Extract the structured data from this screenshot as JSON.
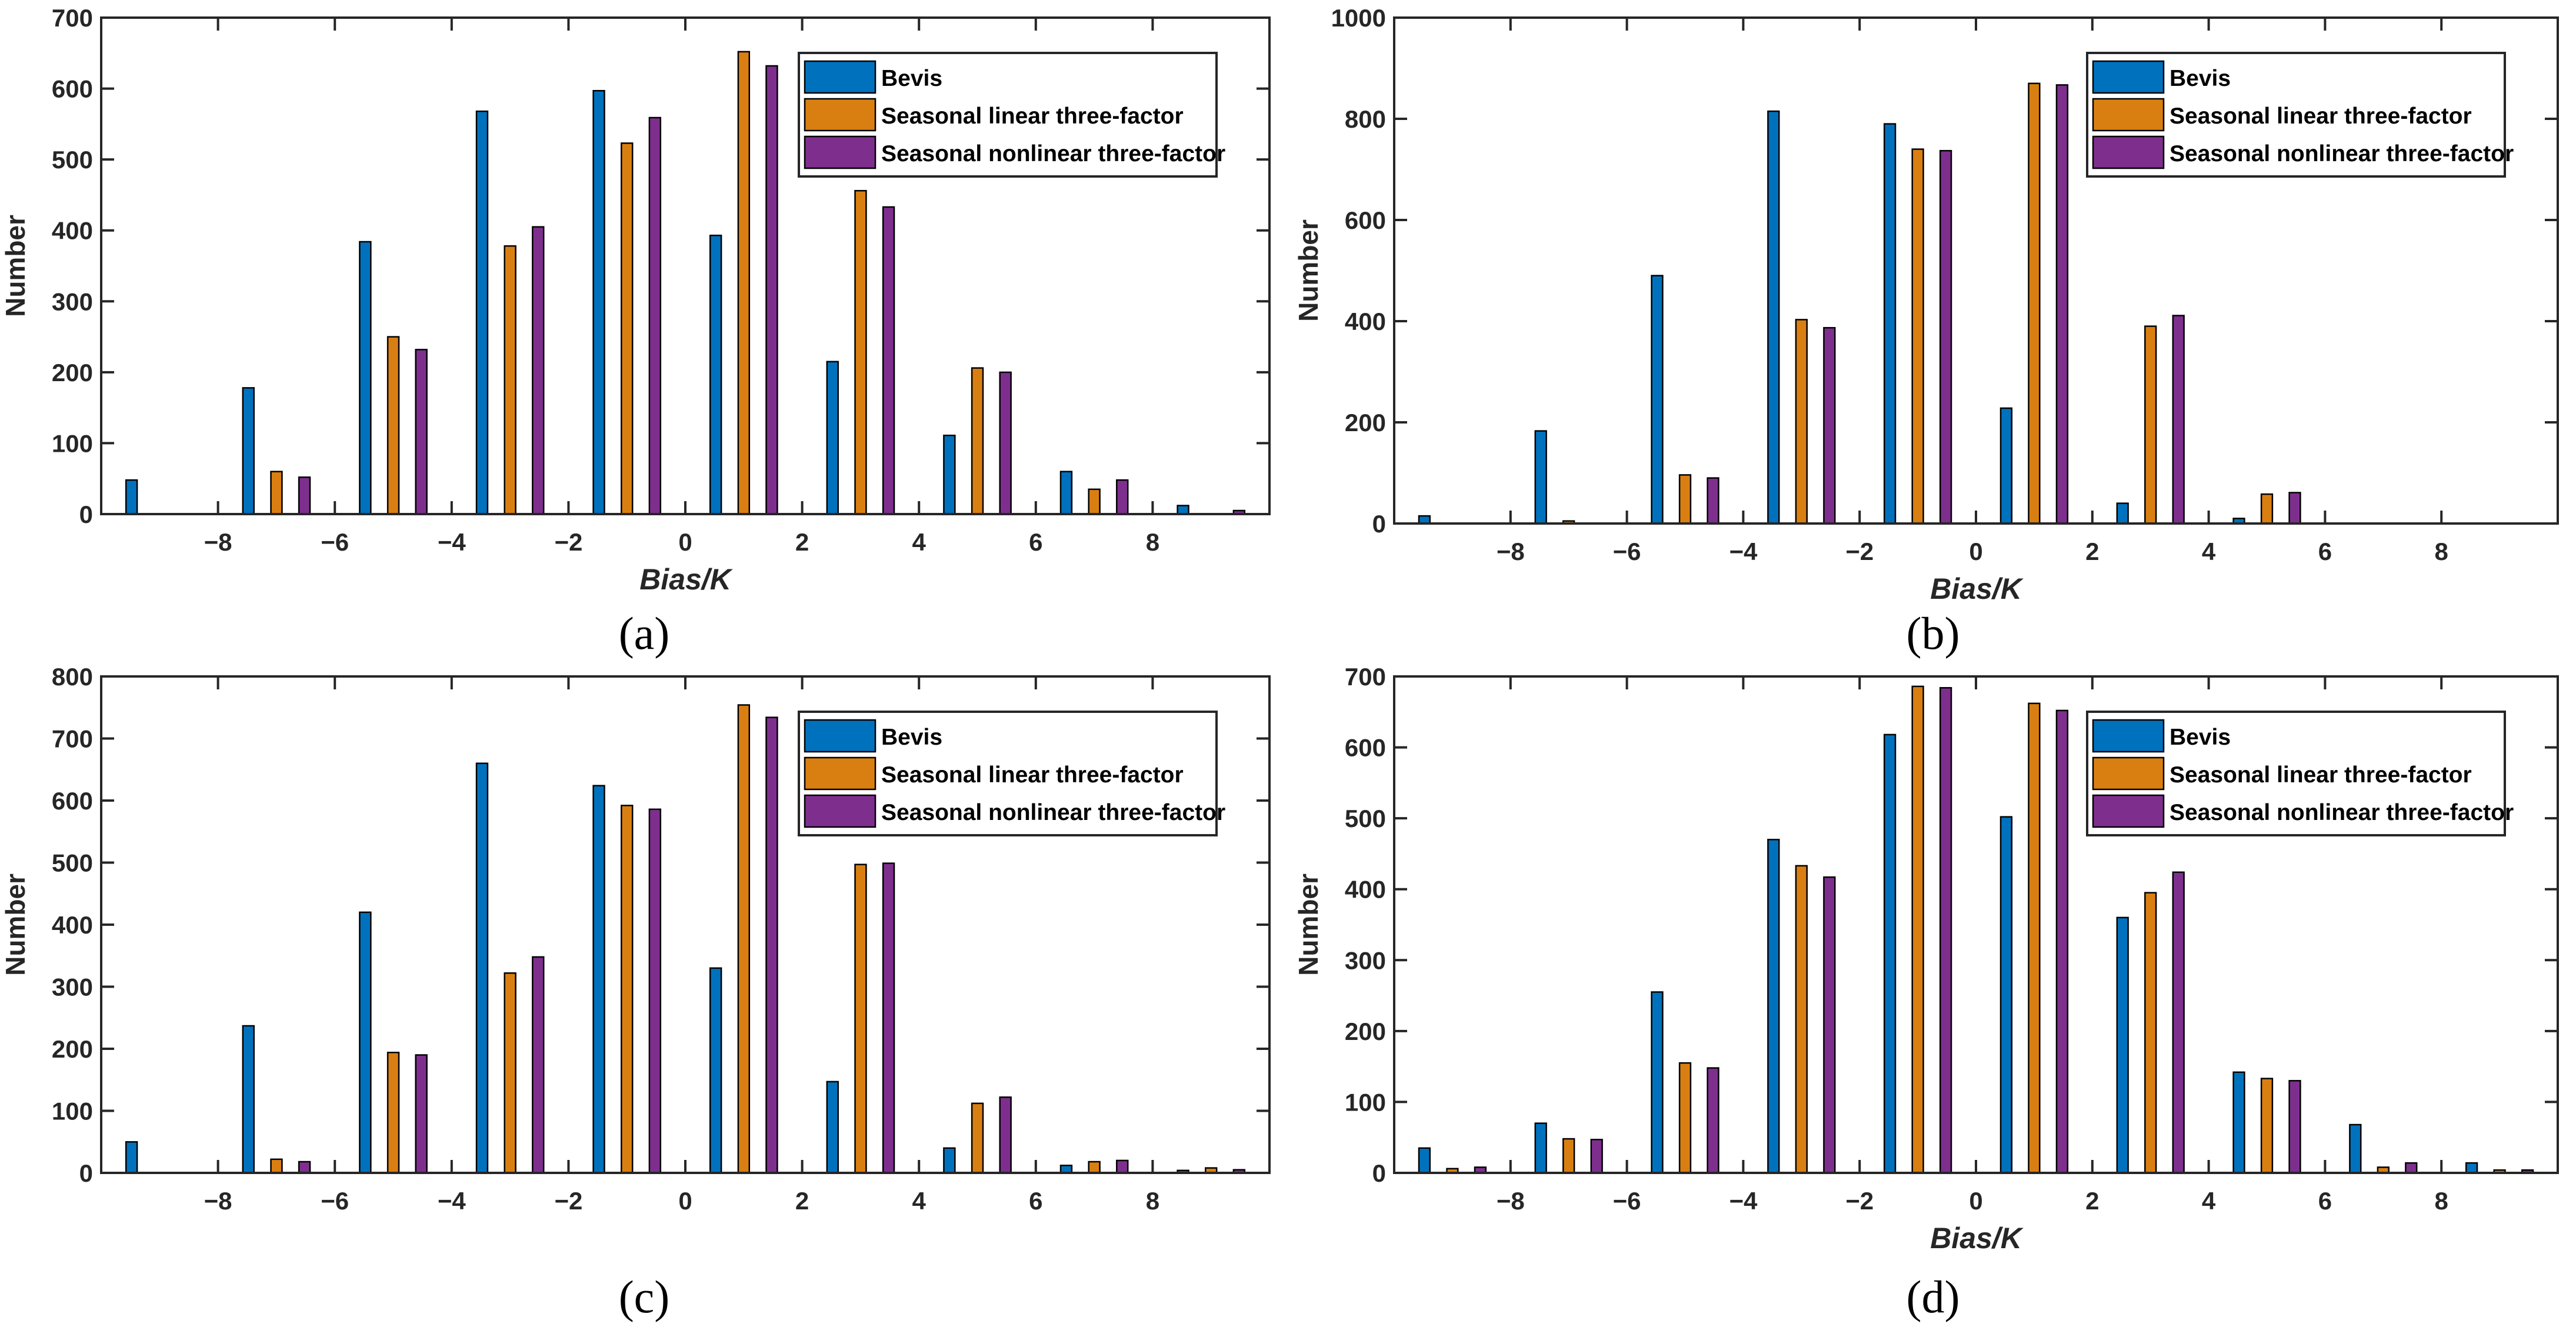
{
  "colors": {
    "bevis": "#0072BD",
    "linear": "#D97F12",
    "nonlinear": "#7E2F8E",
    "axis": "#262626"
  },
  "chart_data": [
    {
      "panel": "(a)",
      "panel_letter": "a",
      "type": "bar",
      "xlabel": "Bias/K",
      "ylabel": "Number",
      "xlim": [
        -10,
        10
      ],
      "ylim": [
        0,
        700
      ],
      "yticks": [
        0,
        100,
        200,
        300,
        400,
        500,
        600,
        700
      ],
      "xticks": [
        -8,
        -6,
        -4,
        -2,
        0,
        2,
        4,
        6,
        8
      ],
      "categories": [
        -9,
        -7,
        -5,
        -3,
        -1,
        1,
        3,
        5,
        7,
        9
      ],
      "legend": {
        "position": "top-right"
      },
      "series": [
        {
          "name": "Bevis",
          "values": [
            48,
            178,
            384,
            568,
            597,
            393,
            215,
            111,
            60,
            12
          ]
        },
        {
          "name": "Seasonal linear three-factor",
          "values": [
            0,
            60,
            250,
            378,
            523,
            652,
            456,
            206,
            35,
            0
          ]
        },
        {
          "name": "Seasonal nonlinear three-factor",
          "values": [
            0,
            52,
            232,
            405,
            559,
            632,
            433,
            200,
            48,
            5
          ]
        }
      ]
    },
    {
      "panel": "(b)",
      "panel_letter": "b",
      "type": "bar",
      "xlabel": "Bias/K",
      "ylabel": "Number",
      "xlim": [
        -10,
        10
      ],
      "ylim": [
        0,
        1000
      ],
      "yticks": [
        0,
        200,
        400,
        600,
        800,
        1000
      ],
      "xticks": [
        -8,
        -6,
        -4,
        -2,
        0,
        2,
        4,
        6,
        8
      ],
      "categories": [
        -9,
        -7,
        -5,
        -3,
        -1,
        1,
        3,
        5,
        7,
        9
      ],
      "legend": {
        "position": "top-right"
      },
      "series": [
        {
          "name": "Bevis",
          "values": [
            15,
            183,
            490,
            815,
            790,
            228,
            40,
            10,
            0,
            0
          ]
        },
        {
          "name": "Seasonal linear three-factor",
          "values": [
            0,
            5,
            96,
            403,
            740,
            870,
            390,
            58,
            0,
            0
          ]
        },
        {
          "name": "Seasonal nonlinear three-factor",
          "values": [
            0,
            0,
            90,
            387,
            737,
            867,
            411,
            61,
            0,
            0
          ]
        }
      ]
    },
    {
      "panel": "(c)",
      "panel_letter": "c",
      "type": "bar",
      "xlabel": "",
      "ylabel": "Number",
      "xlim": [
        -10,
        10
      ],
      "ylim": [
        0,
        800
      ],
      "yticks": [
        0,
        100,
        200,
        300,
        400,
        500,
        600,
        700,
        800
      ],
      "xticks": [
        -8,
        -6,
        -4,
        -2,
        0,
        2,
        4,
        6,
        8
      ],
      "categories": [
        -9,
        -7,
        -5,
        -3,
        -1,
        1,
        3,
        5,
        7,
        9
      ],
      "legend": {
        "position": "top-right"
      },
      "series": [
        {
          "name": "Bevis",
          "values": [
            50,
            237,
            420,
            660,
            624,
            330,
            147,
            40,
            12,
            4
          ]
        },
        {
          "name": "Seasonal linear three-factor",
          "values": [
            0,
            22,
            194,
            322,
            592,
            754,
            497,
            112,
            18,
            8
          ]
        },
        {
          "name": "Seasonal nonlinear three-factor",
          "values": [
            0,
            18,
            190,
            348,
            586,
            734,
            499,
            122,
            20,
            5
          ]
        }
      ]
    },
    {
      "panel": "(d)",
      "panel_letter": "d",
      "type": "bar",
      "xlabel": "Bias/K",
      "ylabel": "Number",
      "xlim": [
        -10,
        10
      ],
      "ylim": [
        0,
        700
      ],
      "yticks": [
        0,
        100,
        200,
        300,
        400,
        500,
        600,
        700
      ],
      "xticks": [
        -8,
        -6,
        -4,
        -2,
        0,
        2,
        4,
        6,
        8
      ],
      "categories": [
        -9,
        -7,
        -5,
        -3,
        -1,
        1,
        3,
        5,
        7,
        9
      ],
      "legend": {
        "position": "top-right"
      },
      "series": [
        {
          "name": "Bevis",
          "values": [
            35,
            70,
            255,
            470,
            618,
            502,
            360,
            142,
            68,
            14
          ]
        },
        {
          "name": "Seasonal linear three-factor",
          "values": [
            6,
            48,
            155,
            433,
            686,
            662,
            395,
            133,
            8,
            4
          ]
        },
        {
          "name": "Seasonal nonlinear three-factor",
          "values": [
            8,
            47,
            148,
            417,
            684,
            652,
            424,
            130,
            14,
            4
          ]
        }
      ]
    }
  ]
}
